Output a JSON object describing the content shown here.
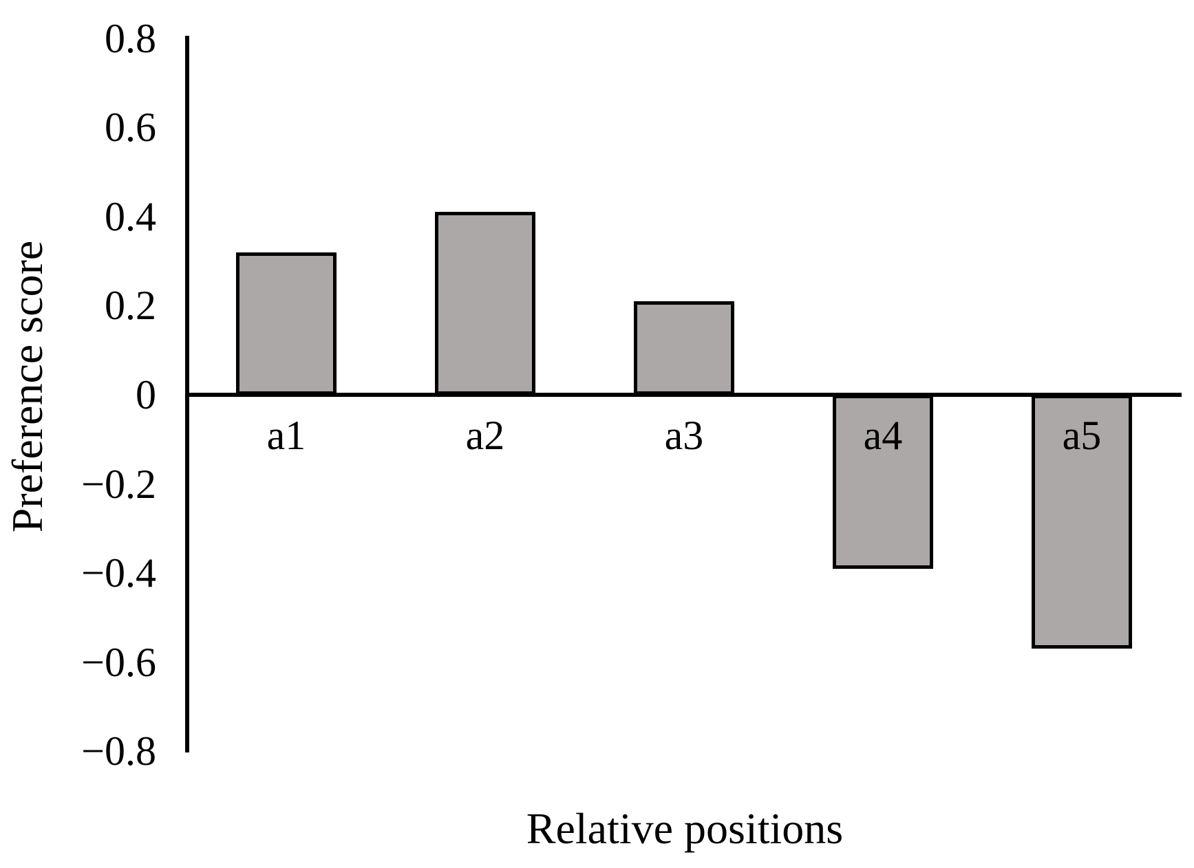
{
  "chart_data": {
    "type": "bar",
    "xlabel": "Relative positions",
    "ylabel": "Preference score",
    "categories": [
      "a1",
      "a2",
      "a3",
      "a4",
      "a5"
    ],
    "values": [
      0.32,
      0.41,
      0.21,
      -0.39,
      -0.57
    ],
    "series": [
      {
        "name": "Preference score",
        "values": [
          0.32,
          0.41,
          0.21,
          -0.39,
          -0.57
        ]
      }
    ],
    "ylim": [
      -0.8,
      0.8
    ],
    "ytick_step": 0.2,
    "yticks": [
      {
        "label": "0.8",
        "value": 0.8
      },
      {
        "label": "0.6",
        "value": 0.6
      },
      {
        "label": "0.4",
        "value": 0.4
      },
      {
        "label": "0.2",
        "value": 0.2
      },
      {
        "label": "0",
        "value": 0.0
      },
      {
        "label": "−0.2",
        "value": -0.2
      },
      {
        "label": "−0.4",
        "value": -0.4
      },
      {
        "label": "−0.6",
        "value": -0.6
      },
      {
        "label": "−0.8",
        "value": -0.8
      }
    ],
    "grid": false,
    "legend_position": "none",
    "colors": {
      "bar_fill": "#aca8a8",
      "bar_stroke": "#000000",
      "axis": "#000000",
      "text": "#000000",
      "background": "#ffffff"
    }
  }
}
